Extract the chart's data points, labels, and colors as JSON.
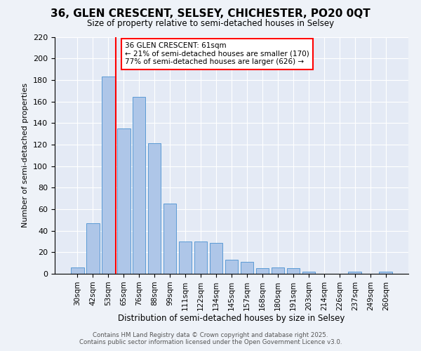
{
  "title1": "36, GLEN CRESCENT, SELSEY, CHICHESTER, PO20 0QT",
  "title2": "Size of property relative to semi-detached houses in Selsey",
  "xlabel": "Distribution of semi-detached houses by size in Selsey",
  "ylabel": "Number of semi-detached properties",
  "categories": [
    "30sqm",
    "42sqm",
    "53sqm",
    "65sqm",
    "76sqm",
    "88sqm",
    "99sqm",
    "111sqm",
    "122sqm",
    "134sqm",
    "145sqm",
    "157sqm",
    "168sqm",
    "180sqm",
    "191sqm",
    "203sqm",
    "214sqm",
    "226sqm",
    "237sqm",
    "249sqm",
    "260sqm"
  ],
  "values": [
    6,
    47,
    183,
    135,
    164,
    121,
    65,
    30,
    30,
    29,
    13,
    11,
    5,
    6,
    5,
    2,
    0,
    0,
    2,
    0,
    2
  ],
  "bar_color": "#aec6e8",
  "bar_edge_color": "#5b9bd5",
  "vline_color": "red",
  "annotation_title": "36 GLEN CRESCENT: 61sqm",
  "annotation_line1": "← 21% of semi-detached houses are smaller (170)",
  "annotation_line2": "77% of semi-detached houses are larger (626) →",
  "ylim": [
    0,
    220
  ],
  "yticks": [
    0,
    20,
    40,
    60,
    80,
    100,
    120,
    140,
    160,
    180,
    200,
    220
  ],
  "footer1": "Contains HM Land Registry data © Crown copyright and database right 2025.",
  "footer2": "Contains public sector information licensed under the Open Government Licence v3.0.",
  "bg_color": "#eef2f8",
  "plot_bg_color": "#e4eaf5"
}
